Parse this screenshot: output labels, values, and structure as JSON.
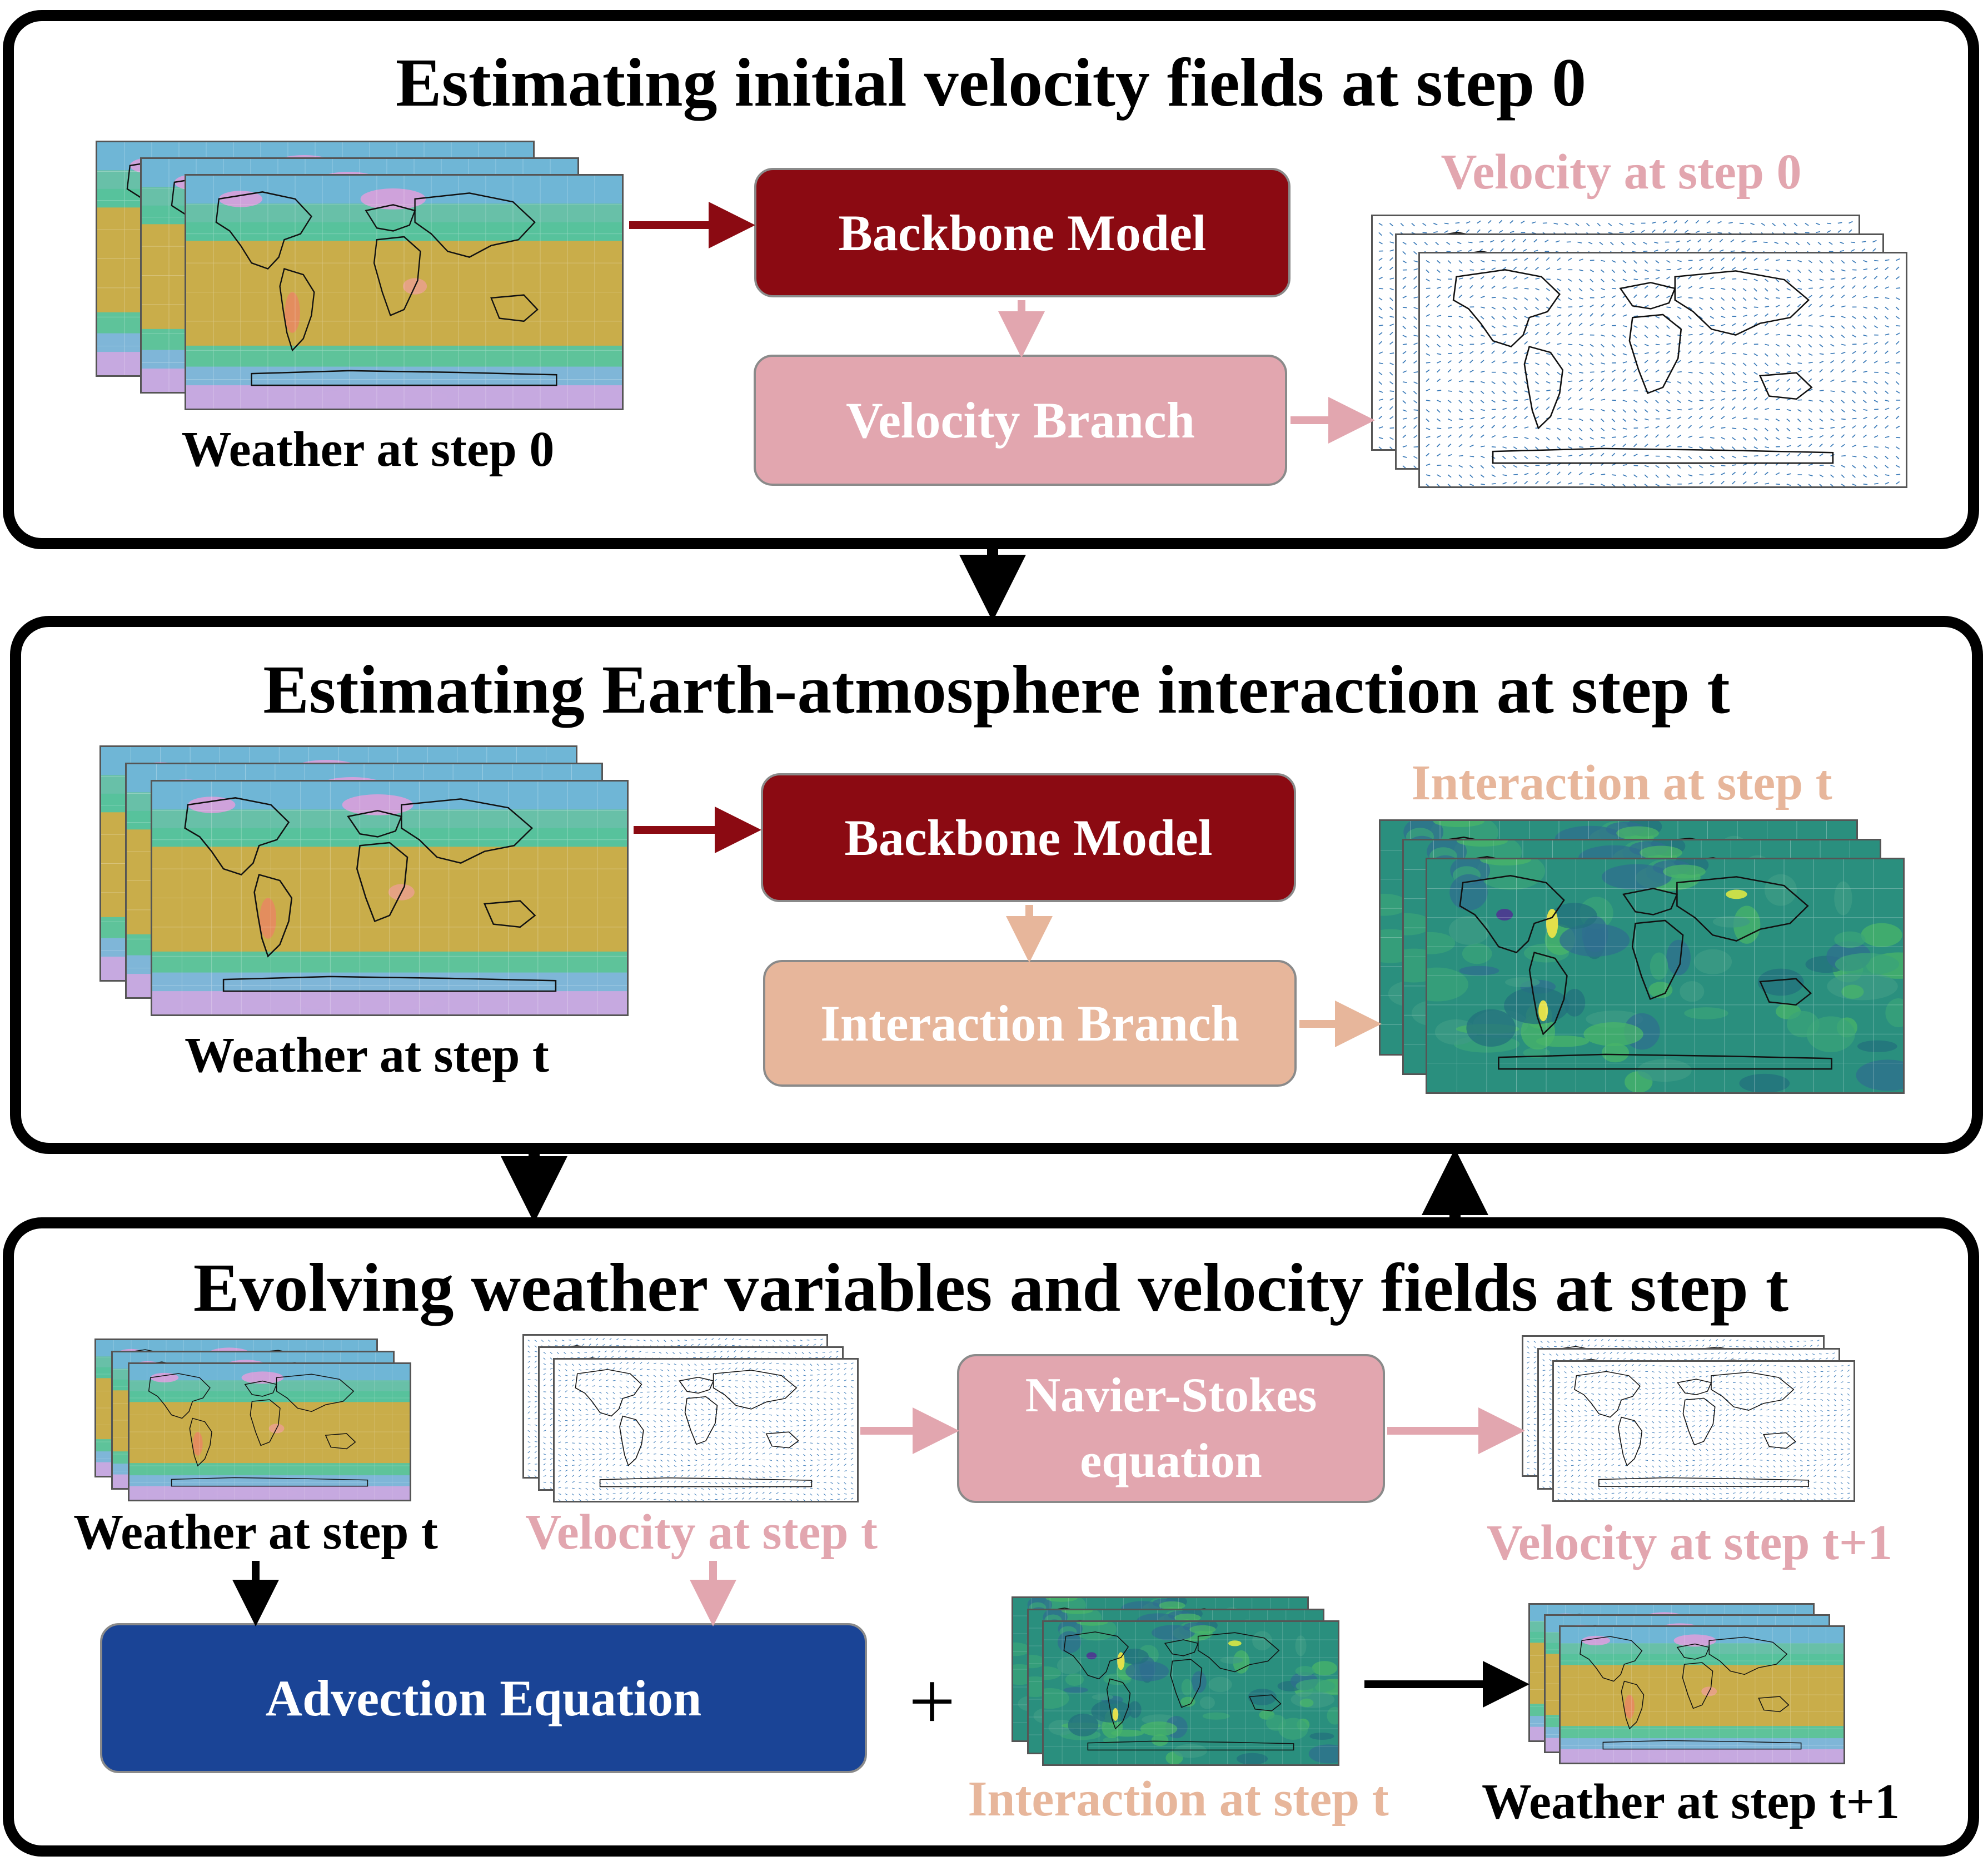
{
  "panel1": {
    "title": "Estimating initial velocity fields at step 0",
    "input_label": "Weather at step 0",
    "backbone": "Backbone Model",
    "branch": "Velocity Branch",
    "output_label": "Velocity at step 0"
  },
  "panel2": {
    "title": "Estimating Earth-atmosphere interaction at step t",
    "input_label": "Weather at step t",
    "backbone": "Backbone Model",
    "branch": "Interaction Branch",
    "output_label": "Interaction at step t"
  },
  "panel3": {
    "title": "Evolving weather variables and velocity fields at step t",
    "weather_label": "Weather at step t",
    "velocity_label": "Velocity at step t",
    "ns_line1": "Navier-Stokes",
    "ns_line2": "equation",
    "velocity_next_label": "Velocity at step t+1",
    "advection": "Advection Equation",
    "plus": "+",
    "interaction_label": "Interaction at step t",
    "weather_next_label": "Weather at step t+1"
  },
  "colors": {
    "backbone": "#8b0a12",
    "velocity": "#e2a6af",
    "interaction": "#e7b69b",
    "advection": "#1a4496",
    "arrow_black": "#000000"
  }
}
